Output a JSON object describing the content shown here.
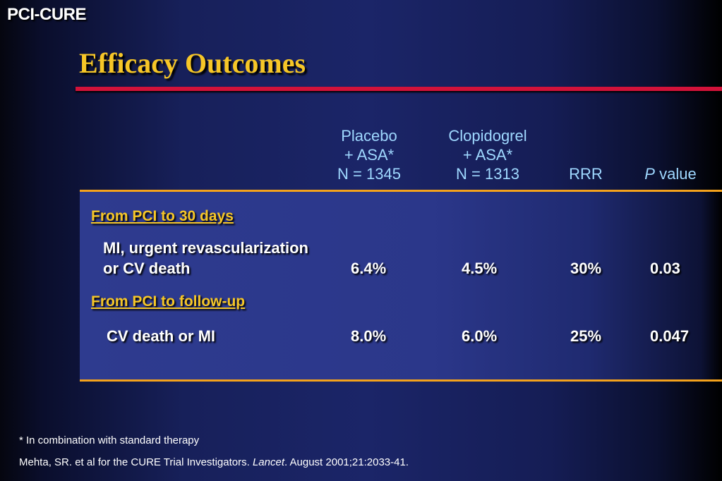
{
  "header": {
    "brand": "PCI-CURE",
    "title": "Efficacy Outcomes"
  },
  "columns": {
    "placebo": [
      "Placebo",
      "+ ASA*",
      "N = 1345"
    ],
    "clopidogrel": [
      "Clopidogrel",
      "+ ASA*",
      "N = 1313"
    ],
    "rrr": "RRR",
    "p_value": {
      "italic": "P",
      "rest": " value"
    }
  },
  "sections": [
    {
      "label": "From PCI to 30 days",
      "row": {
        "label_lines": [
          "MI, urgent revascularization",
          "or CV death"
        ],
        "values": [
          "6.4%",
          "4.5%",
          "30%",
          "0.03"
        ]
      }
    },
    {
      "label": "From PCI to follow-up",
      "row": {
        "label_lines": [
          "CV death or MI"
        ],
        "values": [
          "8.0%",
          "6.0%",
          "25%",
          "0.047"
        ]
      }
    }
  ],
  "footnotes": {
    "note": "* In combination with standard therapy",
    "citation": {
      "before": "Mehta, SR. et al for the CURE Trial Investigators. ",
      "journal": "Lancet",
      "after": ". August 2001;21:2033-41."
    }
  },
  "colors": {
    "title": "#f6c627",
    "header_text": "#9fd8ff",
    "red_rule": "#d2123a",
    "orange_rule": "#f4a21c"
  }
}
